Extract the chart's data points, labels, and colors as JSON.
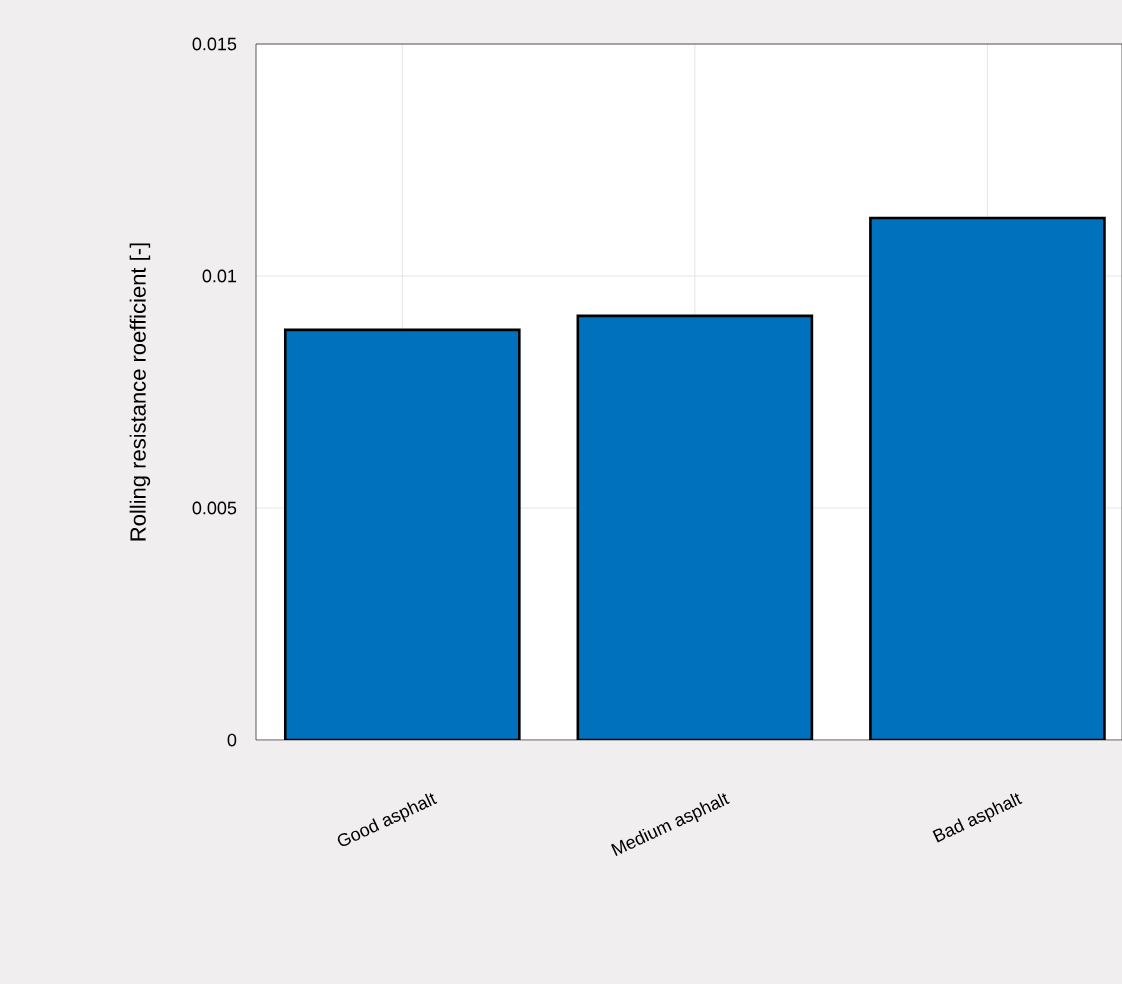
{
  "chart_data": {
    "type": "bar",
    "ylabel": "Rolling resistance roefficient [-]",
    "categories": [
      "Good asphalt",
      "Medium asphalt",
      "Bad asphalt"
    ],
    "values": [
      0.00884,
      0.00914,
      0.01125
    ],
    "color": "#0072bd",
    "ylim": [
      0,
      0.015
    ],
    "yticks": [
      0,
      0.005,
      0.01,
      0.015
    ],
    "grid": true
  }
}
